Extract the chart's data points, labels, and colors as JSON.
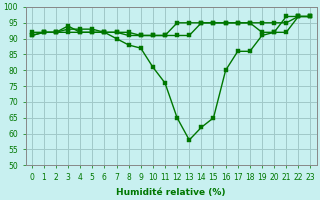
{
  "title": "",
  "xlabel": "Humidité relative (%)",
  "ylabel": "",
  "bg_color": "#c8f0f0",
  "grid_color": "#a0c8c8",
  "line_color": "#007700",
  "marker_color": "#007700",
  "xlim": [
    -0.5,
    23.5
  ],
  "ylim": [
    50,
    100
  ],
  "yticks": [
    50,
    55,
    60,
    65,
    70,
    75,
    80,
    85,
    90,
    95,
    100
  ],
  "xticks": [
    0,
    1,
    2,
    3,
    4,
    5,
    6,
    7,
    8,
    9,
    10,
    11,
    12,
    13,
    14,
    15,
    16,
    17,
    18,
    19,
    20,
    21,
    22,
    23
  ],
  "lines": [
    {
      "x": [
        0,
        1,
        2,
        3,
        4,
        5,
        6,
        7,
        8,
        9,
        10,
        11,
        12,
        13,
        14,
        15,
        16,
        17,
        18,
        19,
        20,
        21,
        22,
        23
      ],
      "y": [
        91,
        92,
        92,
        94,
        92,
        92,
        92,
        90,
        88,
        87,
        81,
        76,
        65,
        58,
        62,
        65,
        80,
        86,
        86,
        91,
        92,
        97,
        97,
        97
      ]
    },
    {
      "x": [
        0,
        1,
        2,
        3,
        4,
        5,
        6,
        7,
        8,
        9,
        10,
        11,
        12,
        13,
        14,
        15,
        16,
        17,
        18,
        19,
        20,
        21,
        22,
        23
      ],
      "y": [
        91,
        92,
        92,
        93,
        93,
        93,
        92,
        92,
        91,
        91,
        91,
        91,
        91,
        91,
        95,
        95,
        95,
        95,
        95,
        92,
        92,
        92,
        97,
        97
      ]
    },
    {
      "x": [
        0,
        1,
        2,
        3,
        4,
        5,
        6,
        7,
        8,
        9,
        10,
        11,
        12,
        13,
        14,
        15,
        16,
        17,
        18,
        19,
        20,
        21,
        22,
        23
      ],
      "y": [
        92,
        92,
        92,
        92,
        92,
        92,
        92,
        92,
        92,
        91,
        91,
        91,
        95,
        95,
        95,
        95,
        95,
        95,
        95,
        95,
        95,
        95,
        97,
        97
      ]
    }
  ],
  "xlabel_fontsize": 6.5,
  "tick_fontsize": 5.5,
  "linewidth": 1.0,
  "markersize": 2.5
}
